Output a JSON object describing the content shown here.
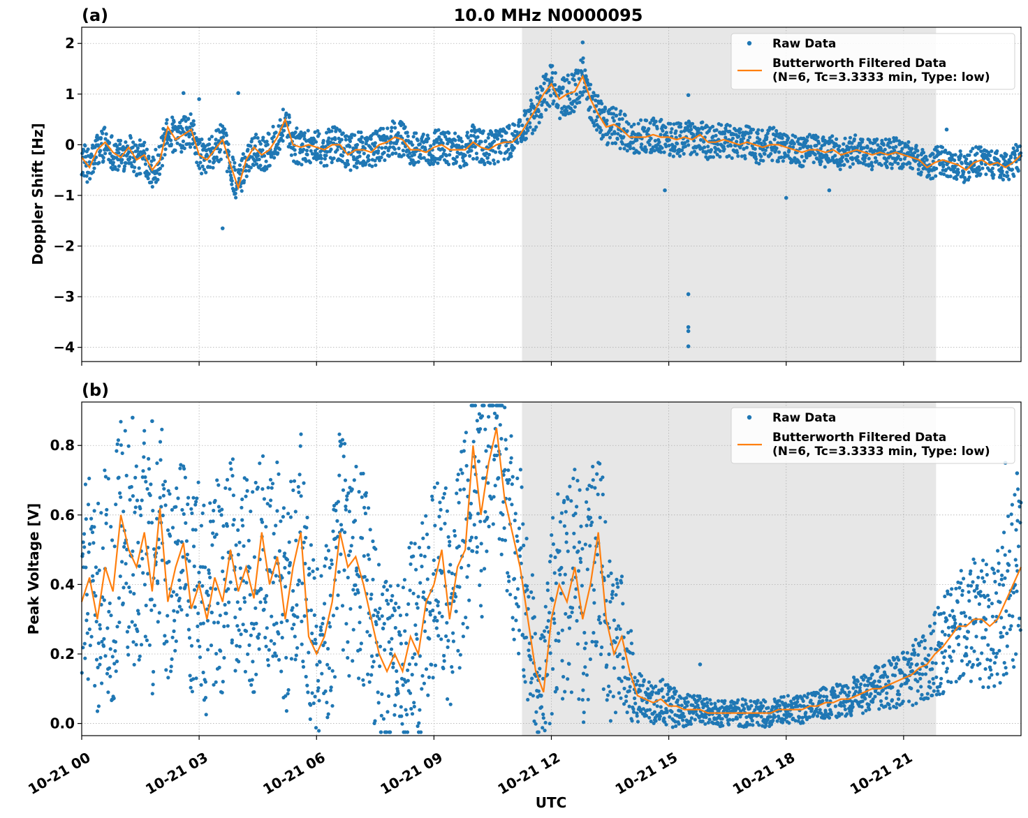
{
  "chart_data": [
    {
      "type": "scatter",
      "panel_label": "(a)",
      "title": "10.0 MHz N0000095",
      "xlabel": "",
      "ylabel": "Doppler Shift [Hz]",
      "x_unit": "hours UTC on 10-21",
      "xlim": [
        0,
        24
      ],
      "ylim": [
        -4.28,
        2.32
      ],
      "yticks": [
        2,
        1,
        0,
        -1,
        -2,
        -3,
        -4
      ],
      "ytick_labels": [
        "2",
        "1",
        "0",
        "−1",
        "−2",
        "−3",
        "−4"
      ],
      "xticks": [
        0,
        3,
        6,
        9,
        12,
        15,
        18,
        21
      ],
      "grid": true,
      "shaded_region": {
        "x_start": 11.25,
        "x_end": 21.83
      },
      "legend": {
        "placement": "top-right",
        "entries": [
          {
            "label": "Raw Data",
            "marker": "dot",
            "color": "#1f77b4"
          },
          {
            "label": "Butterworth Filtered Data\n(N=6, Tc=3.3333 min, Type: low)",
            "marker": "line",
            "color": "#ff7f0e"
          }
        ]
      },
      "series": [
        {
          "name": "Butterworth Filtered Data (N=6, Tc=3.3333 min, Type: low)",
          "kind": "line",
          "color": "#ff7f0e",
          "x": [
            0.0,
            0.2,
            0.4,
            0.6,
            0.8,
            1.0,
            1.2,
            1.4,
            1.6,
            1.8,
            2.0,
            2.2,
            2.4,
            2.6,
            2.8,
            3.0,
            3.2,
            3.4,
            3.6,
            3.8,
            4.0,
            4.2,
            4.4,
            4.6,
            4.8,
            5.0,
            5.2,
            5.4,
            5.6,
            5.8,
            6.0,
            6.2,
            6.4,
            6.6,
            6.8,
            7.0,
            7.2,
            7.4,
            7.6,
            7.8,
            8.0,
            8.2,
            8.4,
            8.6,
            8.8,
            9.0,
            9.2,
            9.4,
            9.6,
            9.8,
            10.0,
            10.2,
            10.4,
            10.6,
            10.8,
            11.0,
            11.2,
            11.4,
            11.6,
            11.8,
            12.0,
            12.2,
            12.4,
            12.6,
            12.8,
            13.0,
            13.2,
            13.4,
            13.6,
            13.8,
            14.0,
            14.2,
            14.4,
            14.6,
            14.8,
            15.0,
            15.2,
            15.4,
            15.6,
            15.8,
            16.0,
            16.2,
            16.4,
            16.6,
            16.8,
            17.0,
            17.2,
            17.4,
            17.6,
            17.8,
            18.0,
            18.2,
            18.4,
            18.6,
            18.8,
            19.0,
            19.2,
            19.4,
            19.6,
            19.8,
            20.0,
            20.2,
            20.4,
            20.6,
            20.8,
            21.0,
            21.2,
            21.4,
            21.6,
            21.8,
            22.0,
            22.2,
            22.4,
            22.6,
            22.8,
            23.0,
            23.2,
            23.4,
            23.6,
            23.8,
            24.0
          ],
          "y": [
            -0.25,
            -0.45,
            -0.1,
            0.05,
            -0.15,
            -0.25,
            -0.05,
            -0.3,
            -0.2,
            -0.5,
            -0.3,
            0.35,
            0.1,
            0.2,
            0.3,
            -0.2,
            -0.3,
            -0.1,
            0.1,
            -0.4,
            -0.85,
            -0.3,
            -0.05,
            -0.2,
            -0.1,
            0.15,
            0.5,
            0.0,
            -0.05,
            0.0,
            -0.05,
            -0.1,
            0.0,
            0.0,
            -0.2,
            -0.1,
            -0.1,
            -0.15,
            0.0,
            0.05,
            0.15,
            0.1,
            -0.1,
            -0.1,
            -0.15,
            -0.05,
            0.0,
            -0.1,
            -0.1,
            -0.1,
            0.05,
            -0.05,
            -0.1,
            0.0,
            0.05,
            0.05,
            0.2,
            0.45,
            0.7,
            1.0,
            1.2,
            0.9,
            1.0,
            1.05,
            1.35,
            0.9,
            0.6,
            0.35,
            0.4,
            0.3,
            0.15,
            0.15,
            0.15,
            0.2,
            0.15,
            0.15,
            0.1,
            0.15,
            0.1,
            0.2,
            0.05,
            0.05,
            0.1,
            0.05,
            0.0,
            0.05,
            0.0,
            -0.05,
            0.0,
            0.0,
            -0.05,
            -0.1,
            -0.15,
            -0.1,
            -0.1,
            -0.15,
            -0.1,
            -0.2,
            -0.15,
            -0.1,
            -0.15,
            -0.2,
            -0.15,
            -0.2,
            -0.15,
            -0.2,
            -0.25,
            -0.3,
            -0.45,
            -0.35,
            -0.3,
            -0.35,
            -0.4,
            -0.5,
            -0.35,
            -0.3,
            -0.4,
            -0.35,
            -0.45,
            -0.35,
            -0.2
          ]
        },
        {
          "name": "Raw Data",
          "kind": "scatter",
          "color": "#1f77b4",
          "spread": [
            0.35,
            0.35,
            0.35,
            0.35,
            0.35,
            0.35,
            0.35,
            0.35,
            0.35,
            0.35,
            0.35,
            0.35,
            0.35,
            0.35,
            0.35,
            0.35,
            0.35,
            0.35,
            0.35,
            0.35,
            0.35,
            0.35,
            0.35,
            0.35,
            0.35,
            0.35,
            0.35,
            0.35,
            0.35,
            0.35,
            0.35,
            0.35,
            0.35,
            0.35,
            0.35,
            0.35,
            0.35,
            0.35,
            0.35,
            0.35,
            0.35,
            0.35,
            0.35,
            0.35,
            0.35,
            0.35,
            0.35,
            0.35,
            0.35,
            0.35,
            0.35,
            0.35,
            0.35,
            0.35,
            0.35,
            0.35,
            0.35,
            0.35,
            0.4,
            0.4,
            0.4,
            0.4,
            0.4,
            0.4,
            0.4,
            0.4,
            0.4,
            0.4,
            0.4,
            0.4,
            0.35,
            0.35,
            0.35,
            0.35,
            0.35,
            0.35,
            0.35,
            0.35,
            0.35,
            0.35,
            0.35,
            0.35,
            0.35,
            0.35,
            0.35,
            0.35,
            0.35,
            0.35,
            0.35,
            0.35,
            0.3,
            0.3,
            0.3,
            0.3,
            0.3,
            0.3,
            0.3,
            0.3,
            0.3,
            0.3,
            0.3,
            0.3,
            0.3,
            0.3,
            0.3,
            0.3,
            0.3,
            0.3,
            0.3,
            0.3,
            0.3,
            0.3,
            0.3,
            0.3,
            0.3,
            0.3,
            0.3,
            0.3,
            0.3,
            0.3,
            0.3
          ],
          "outliers": [
            {
              "x": 2.6,
              "y": 1.02
            },
            {
              "x": 3.0,
              "y": 0.9
            },
            {
              "x": 3.6,
              "y": -1.65
            },
            {
              "x": 4.0,
              "y": 1.02
            },
            {
              "x": 12.8,
              "y": 2.02
            },
            {
              "x": 15.5,
              "y": -2.95
            },
            {
              "x": 15.5,
              "y": -3.6
            },
            {
              "x": 15.5,
              "y": -3.68
            },
            {
              "x": 15.5,
              "y": -3.98
            },
            {
              "x": 14.9,
              "y": -0.9
            },
            {
              "x": 15.5,
              "y": 0.98
            },
            {
              "x": 18.0,
              "y": -1.05
            },
            {
              "x": 19.1,
              "y": -0.9
            },
            {
              "x": 22.1,
              "y": 0.3
            }
          ]
        }
      ]
    },
    {
      "type": "scatter",
      "panel_label": "(b)",
      "title": "",
      "xlabel": "UTC",
      "ylabel": "Peak Voltage [V]",
      "x_unit": "hours UTC on 10-21",
      "xlim": [
        0,
        24
      ],
      "ylim": [
        -0.035,
        0.925
      ],
      "yticks": [
        0.0,
        0.2,
        0.4,
        0.6,
        0.8
      ],
      "ytick_labels": [
        "0.0",
        "0.2",
        "0.4",
        "0.6",
        "0.8"
      ],
      "xticks": [
        0,
        3,
        6,
        9,
        12,
        15,
        18,
        21
      ],
      "xtick_labels": [
        "10-21 00",
        "10-21 03",
        "10-21 06",
        "10-21 09",
        "10-21 12",
        "10-21 15",
        "10-21 18",
        "10-21 21"
      ],
      "grid": true,
      "shaded_region": {
        "x_start": 11.25,
        "x_end": 21.83
      },
      "legend": {
        "placement": "top-right",
        "entries": [
          {
            "label": "Raw Data",
            "marker": "dot",
            "color": "#1f77b4"
          },
          {
            "label": "Butterworth Filtered Data\n(N=6, Tc=3.3333 min, Type: low)",
            "marker": "line",
            "color": "#ff7f0e"
          }
        ]
      },
      "series": [
        {
          "name": "Butterworth Filtered Data (N=6, Tc=3.3333 min, Type: low)",
          "kind": "line",
          "color": "#ff7f0e",
          "x": [
            0.0,
            0.2,
            0.4,
            0.6,
            0.8,
            1.0,
            1.2,
            1.4,
            1.6,
            1.8,
            2.0,
            2.2,
            2.4,
            2.6,
            2.8,
            3.0,
            3.2,
            3.4,
            3.6,
            3.8,
            4.0,
            4.2,
            4.4,
            4.6,
            4.8,
            5.0,
            5.2,
            5.4,
            5.6,
            5.8,
            6.0,
            6.2,
            6.4,
            6.6,
            6.8,
            7.0,
            7.2,
            7.4,
            7.6,
            7.8,
            8.0,
            8.2,
            8.4,
            8.6,
            8.8,
            9.0,
            9.2,
            9.4,
            9.6,
            9.8,
            10.0,
            10.2,
            10.4,
            10.6,
            10.8,
            11.0,
            11.2,
            11.4,
            11.6,
            11.8,
            12.0,
            12.2,
            12.4,
            12.6,
            12.8,
            13.0,
            13.2,
            13.4,
            13.6,
            13.8,
            14.0,
            14.2,
            14.4,
            14.6,
            14.8,
            15.0,
            15.2,
            15.4,
            15.6,
            15.8,
            16.0,
            16.2,
            16.4,
            16.6,
            16.8,
            17.0,
            17.2,
            17.4,
            17.6,
            17.8,
            18.0,
            18.2,
            18.4,
            18.6,
            18.8,
            19.0,
            19.2,
            19.4,
            19.6,
            19.8,
            20.0,
            20.2,
            20.4,
            20.6,
            20.8,
            21.0,
            21.2,
            21.4,
            21.6,
            21.8,
            22.0,
            22.2,
            22.4,
            22.6,
            22.8,
            23.0,
            23.2,
            23.4,
            23.6,
            23.8,
            24.0
          ],
          "y": [
            0.35,
            0.42,
            0.3,
            0.45,
            0.38,
            0.6,
            0.5,
            0.45,
            0.55,
            0.38,
            0.62,
            0.35,
            0.45,
            0.52,
            0.33,
            0.4,
            0.3,
            0.42,
            0.35,
            0.5,
            0.38,
            0.45,
            0.36,
            0.55,
            0.4,
            0.48,
            0.3,
            0.45,
            0.55,
            0.25,
            0.2,
            0.25,
            0.35,
            0.55,
            0.45,
            0.48,
            0.4,
            0.3,
            0.2,
            0.15,
            0.2,
            0.15,
            0.25,
            0.2,
            0.35,
            0.4,
            0.5,
            0.3,
            0.45,
            0.5,
            0.8,
            0.6,
            0.75,
            0.85,
            0.65,
            0.55,
            0.45,
            0.3,
            0.15,
            0.09,
            0.3,
            0.4,
            0.35,
            0.45,
            0.3,
            0.4,
            0.55,
            0.3,
            0.2,
            0.25,
            0.15,
            0.08,
            0.07,
            0.06,
            0.07,
            0.05,
            0.05,
            0.04,
            0.04,
            0.04,
            0.03,
            0.03,
            0.03,
            0.03,
            0.03,
            0.03,
            0.03,
            0.03,
            0.03,
            0.04,
            0.04,
            0.04,
            0.04,
            0.05,
            0.05,
            0.06,
            0.06,
            0.07,
            0.07,
            0.08,
            0.09,
            0.1,
            0.1,
            0.11,
            0.12,
            0.13,
            0.14,
            0.16,
            0.17,
            0.2,
            0.22,
            0.25,
            0.28,
            0.28,
            0.3,
            0.3,
            0.28,
            0.3,
            0.35,
            0.4,
            0.45
          ]
        },
        {
          "name": "Raw Data",
          "kind": "scatter",
          "color": "#1f77b4",
          "spread": [
            0.3,
            0.32,
            0.32,
            0.34,
            0.34,
            0.3,
            0.32,
            0.32,
            0.3,
            0.32,
            0.3,
            0.32,
            0.3,
            0.3,
            0.3,
            0.32,
            0.3,
            0.3,
            0.3,
            0.3,
            0.3,
            0.3,
            0.3,
            0.3,
            0.3,
            0.3,
            0.3,
            0.3,
            0.3,
            0.3,
            0.25,
            0.25,
            0.32,
            0.32,
            0.32,
            0.32,
            0.32,
            0.32,
            0.28,
            0.28,
            0.2,
            0.25,
            0.3,
            0.3,
            0.32,
            0.32,
            0.32,
            0.32,
            0.32,
            0.32,
            0.3,
            0.32,
            0.3,
            0.25,
            0.28,
            0.28,
            0.3,
            0.25,
            0.2,
            0.15,
            0.3,
            0.32,
            0.32,
            0.32,
            0.32,
            0.32,
            0.3,
            0.3,
            0.2,
            0.2,
            0.15,
            0.08,
            0.05,
            0.06,
            0.07,
            0.07,
            0.06,
            0.05,
            0.04,
            0.04,
            0.04,
            0.04,
            0.04,
            0.04,
            0.04,
            0.04,
            0.04,
            0.04,
            0.04,
            0.04,
            0.04,
            0.04,
            0.04,
            0.04,
            0.04,
            0.05,
            0.05,
            0.05,
            0.05,
            0.06,
            0.06,
            0.06,
            0.07,
            0.07,
            0.08,
            0.08,
            0.09,
            0.1,
            0.1,
            0.12,
            0.14,
            0.15,
            0.16,
            0.16,
            0.18,
            0.2,
            0.18,
            0.2,
            0.22,
            0.25,
            0.28
          ],
          "outliers": [
            {
              "x": 1.3,
              "y": 0.88
            },
            {
              "x": 1.8,
              "y": 0.87
            },
            {
              "x": 10.2,
              "y": 0.88
            },
            {
              "x": 10.6,
              "y": 0.88
            },
            {
              "x": 15.8,
              "y": 0.17
            },
            {
              "x": 23.6,
              "y": 0.75
            },
            {
              "x": 23.9,
              "y": 0.72
            }
          ]
        }
      ]
    }
  ]
}
